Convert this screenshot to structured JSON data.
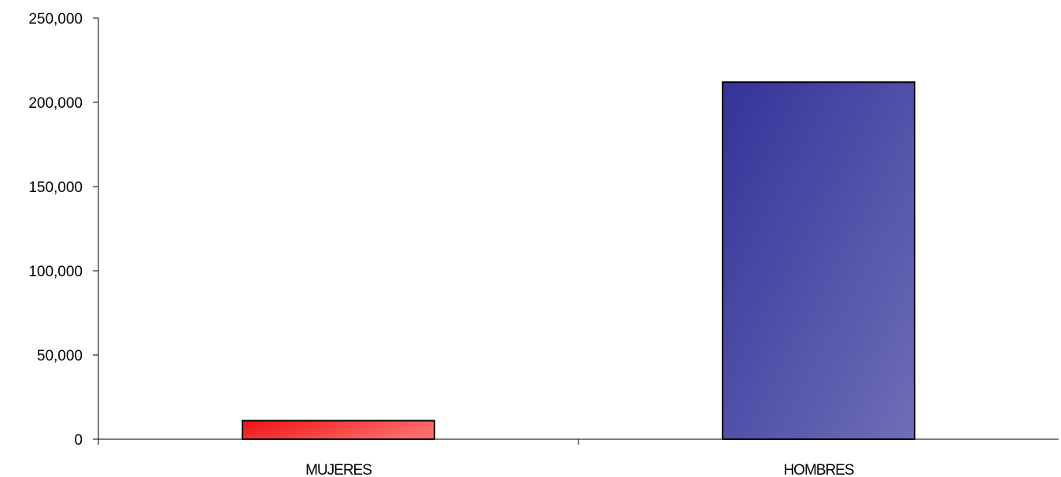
{
  "chart_data": {
    "type": "bar",
    "title": "",
    "xlabel": "",
    "ylabel": "",
    "categories": [
      "MUJERES",
      "HOMBRES"
    ],
    "values": [
      11000,
      212000
    ],
    "ylim": [
      0,
      250000
    ],
    "yticks": [
      0,
      50000,
      100000,
      150000,
      200000,
      250000
    ],
    "ytick_labels": [
      "0",
      "50,000",
      "100,000",
      "150,000",
      "200,000",
      "250,000"
    ],
    "grid": false,
    "legend": "none",
    "colors": {
      "MUJERES": {
        "start": "#ee1111",
        "end": "#ff6a6a"
      },
      "HOMBRES": {
        "start": "#33339a",
        "end": "#6e6eb8"
      }
    }
  }
}
